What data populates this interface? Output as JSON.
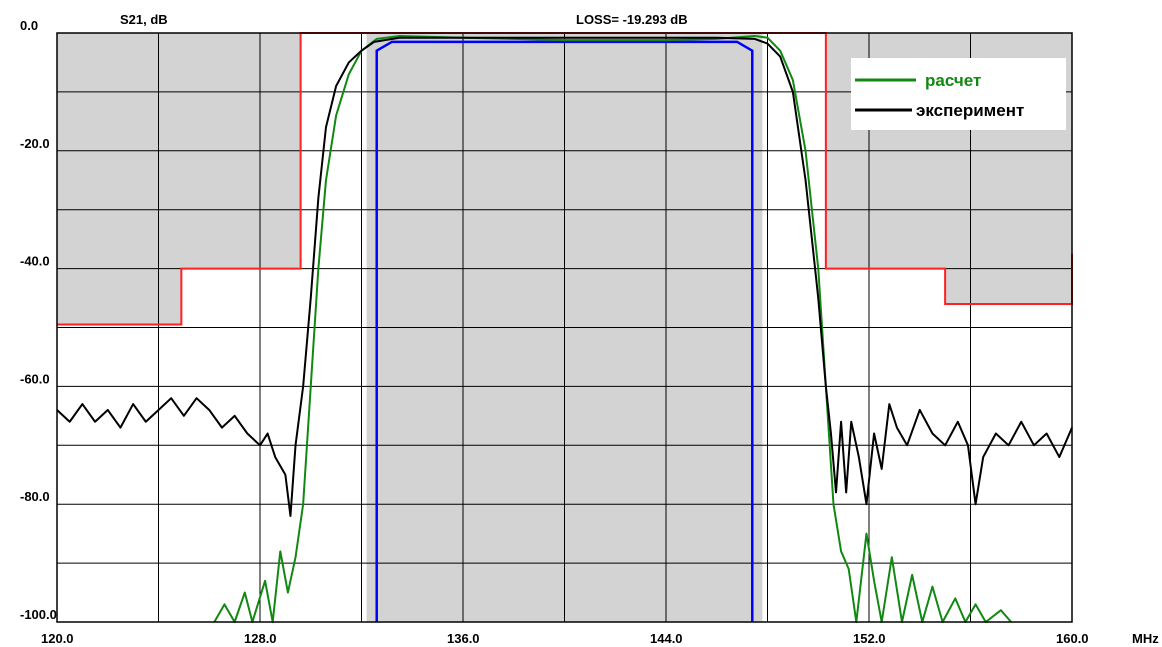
{
  "chart_data": {
    "type": "line",
    "title": "LOSS= -19.293 dB",
    "ylabel": "S21, dB",
    "xunit": "MHz",
    "xlim": [
      120,
      160
    ],
    "ylim": [
      -100,
      0
    ],
    "x_major_ticks": [
      120,
      128,
      136,
      144,
      152,
      160
    ],
    "x_tick_labels": [
      "120.0",
      "128.0",
      "136.0",
      "144.0",
      "152.0",
      "160.0"
    ],
    "y_major_ticks": [
      0,
      -20,
      -40,
      -60,
      -80,
      -100
    ],
    "y_tick_labels": [
      "0.0",
      "-20.0",
      "-40.0",
      "-60.0",
      "-80.0",
      "-100.0"
    ],
    "grid": true,
    "colors": {
      "mask": "#ff2020",
      "mask_fill": "#d3d3d3",
      "passband": "#0000ff",
      "calc": "#118811",
      "exp": "#000000",
      "grid": "#000000"
    },
    "mask": {
      "shaded_regions": [
        {
          "x": [
            120,
            129.6
          ],
          "y_top": 0,
          "y_bottom": -49.5,
          "step": {
            "x": 124.9,
            "y_left": -49.5,
            "y_right": -40
          }
        },
        {
          "x": [
            132.2,
            147.8
          ],
          "y_top": 0,
          "y_bottom": -100
        },
        {
          "x": [
            150.3,
            160
          ],
          "y_top": 0,
          "y_bottom": -46,
          "step": {
            "x": 155,
            "y_left": -40,
            "y_right": -46
          }
        }
      ],
      "line": [
        [
          120,
          -49.5
        ],
        [
          124.9,
          -49.5
        ],
        [
          124.9,
          -40
        ],
        [
          129.6,
          -40
        ],
        [
          129.6,
          0
        ],
        [
          150.3,
          0
        ],
        [
          150.3,
          -40
        ],
        [
          155,
          -40
        ],
        [
          155,
          -46
        ],
        [
          160,
          -46
        ],
        [
          160,
          -37.5
        ]
      ]
    },
    "passband_line": [
      [
        132.6,
        -100
      ],
      [
        132.6,
        -3
      ],
      [
        133.2,
        -1.5
      ],
      [
        146.8,
        -1.5
      ],
      [
        147.4,
        -3
      ],
      [
        147.4,
        -100
      ]
    ],
    "series": [
      {
        "name": "расчет",
        "key": "calc",
        "points": [
          [
            126.2,
            -100
          ],
          [
            126.6,
            -97
          ],
          [
            127,
            -100
          ],
          [
            127.4,
            -95
          ],
          [
            127.7,
            -100
          ],
          [
            128.2,
            -93
          ],
          [
            128.5,
            -100
          ],
          [
            128.8,
            -88
          ],
          [
            129.1,
            -95
          ],
          [
            129.4,
            -89
          ],
          [
            129.7,
            -80
          ],
          [
            130,
            -60
          ],
          [
            130.3,
            -40
          ],
          [
            130.6,
            -25
          ],
          [
            131,
            -14
          ],
          [
            131.5,
            -7
          ],
          [
            132,
            -3
          ],
          [
            132.6,
            -1
          ],
          [
            133.5,
            -0.5
          ],
          [
            136,
            -0.8
          ],
          [
            140,
            -1.2
          ],
          [
            144,
            -1.2
          ],
          [
            146,
            -1
          ],
          [
            147.5,
            -0.5
          ],
          [
            148,
            -0.8
          ],
          [
            148.5,
            -3
          ],
          [
            149,
            -8
          ],
          [
            149.5,
            -20
          ],
          [
            150,
            -40
          ],
          [
            150.3,
            -60
          ],
          [
            150.6,
            -80
          ],
          [
            150.9,
            -88
          ],
          [
            151.2,
            -91
          ],
          [
            151.5,
            -100
          ],
          [
            151.9,
            -85
          ],
          [
            152.2,
            -93
          ],
          [
            152.5,
            -100
          ],
          [
            152.9,
            -89
          ],
          [
            153.3,
            -100
          ],
          [
            153.7,
            -92
          ],
          [
            154.1,
            -100
          ],
          [
            154.5,
            -94
          ],
          [
            154.9,
            -100
          ],
          [
            155.4,
            -96
          ],
          [
            155.8,
            -100
          ],
          [
            156.2,
            -97
          ],
          [
            156.6,
            -100
          ],
          [
            157.2,
            -98
          ],
          [
            157.6,
            -100
          ]
        ]
      },
      {
        "name": "эксперимент",
        "key": "exp",
        "points": [
          [
            120,
            -64
          ],
          [
            120.5,
            -66
          ],
          [
            121,
            -63
          ],
          [
            121.5,
            -66
          ],
          [
            122,
            -64
          ],
          [
            122.5,
            -67
          ],
          [
            123,
            -63
          ],
          [
            123.5,
            -66
          ],
          [
            124,
            -64
          ],
          [
            124.5,
            -62
          ],
          [
            125,
            -65
          ],
          [
            125.5,
            -62
          ],
          [
            126,
            -64
          ],
          [
            126.5,
            -67
          ],
          [
            127,
            -65
          ],
          [
            127.5,
            -68
          ],
          [
            128,
            -70
          ],
          [
            128.3,
            -68
          ],
          [
            128.6,
            -72
          ],
          [
            129,
            -75
          ],
          [
            129.2,
            -82
          ],
          [
            129.4,
            -70
          ],
          [
            129.7,
            -60
          ],
          [
            130,
            -45
          ],
          [
            130.3,
            -28
          ],
          [
            130.6,
            -16
          ],
          [
            131,
            -9
          ],
          [
            131.5,
            -5
          ],
          [
            132,
            -3
          ],
          [
            132.5,
            -1.5
          ],
          [
            133.5,
            -0.8
          ],
          [
            140,
            -0.8
          ],
          [
            146,
            -0.8
          ],
          [
            147.5,
            -1
          ],
          [
            148,
            -1.8
          ],
          [
            148.5,
            -4
          ],
          [
            149,
            -10
          ],
          [
            149.5,
            -25
          ],
          [
            150,
            -45
          ],
          [
            150.3,
            -60
          ],
          [
            150.5,
            -68
          ],
          [
            150.7,
            -78
          ],
          [
            150.9,
            -66
          ],
          [
            151.1,
            -78
          ],
          [
            151.3,
            -66
          ],
          [
            151.6,
            -72
          ],
          [
            151.9,
            -80
          ],
          [
            152.2,
            -68
          ],
          [
            152.5,
            -74
          ],
          [
            152.8,
            -63
          ],
          [
            153.1,
            -67
          ],
          [
            153.5,
            -70
          ],
          [
            154,
            -64
          ],
          [
            154.5,
            -68
          ],
          [
            155,
            -70
          ],
          [
            155.5,
            -66
          ],
          [
            155.9,
            -70
          ],
          [
            156.2,
            -80
          ],
          [
            156.5,
            -72
          ],
          [
            157,
            -68
          ],
          [
            157.5,
            -70
          ],
          [
            158,
            -66
          ],
          [
            158.5,
            -70
          ],
          [
            159,
            -68
          ],
          [
            159.5,
            -72
          ],
          [
            160,
            -67
          ]
        ]
      }
    ],
    "legend": {
      "placement": "top-right",
      "entries": [
        "расчет",
        "эксперимент"
      ]
    }
  }
}
